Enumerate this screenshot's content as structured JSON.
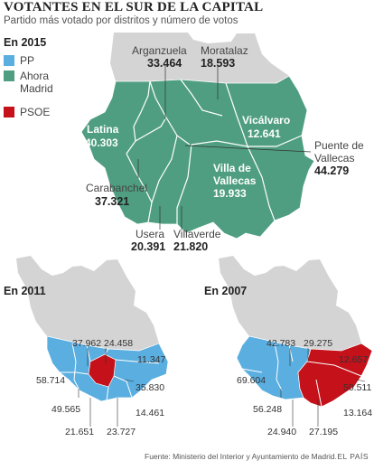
{
  "header": {
    "title": "VOTANTES EN EL SUR DE LA CAPITAL",
    "subtitle": "Partido más votado por distritos y número de votos"
  },
  "colors": {
    "pp": "#5aaee0",
    "ahora_madrid": "#4f9e82",
    "psoe": "#c4111a",
    "other_districts": "#d4d4d4",
    "borders": "#ffffff"
  },
  "legend": [
    {
      "label": "PP",
      "color": "#5aaee0"
    },
    {
      "label": "Ahora Madrid",
      "color": "#4f9e82"
    },
    {
      "label": "PSOE",
      "color": "#c4111a"
    }
  ],
  "map_2015": {
    "heading": "En 2015",
    "districts": [
      {
        "name": "Arganzuela",
        "votes": "33.464"
      },
      {
        "name": "Moratalaz",
        "votes": "18.593"
      },
      {
        "name": "Latina",
        "votes": "40.303"
      },
      {
        "name": "Vicálvaro",
        "votes": "12.641"
      },
      {
        "name": "Puente de Vallecas",
        "votes": "44.279"
      },
      {
        "name": "Villa de Vallecas",
        "votes": "19.933"
      },
      {
        "name": "Carabanchel",
        "votes": "37.321"
      },
      {
        "name": "Usera",
        "votes": "20.391"
      },
      {
        "name": "Villaverde",
        "votes": "21.820"
      }
    ]
  },
  "map_2011": {
    "heading": "En 2011",
    "values": [
      "37.962",
      "24.458",
      "11.347",
      "58.714",
      "35.830",
      "49.565",
      "14.461",
      "21.651",
      "23.727"
    ]
  },
  "map_2007": {
    "heading": "En 2007",
    "values": [
      "42.783",
      "29.275",
      "12.657",
      "69.604",
      "50.511",
      "56.248",
      "13.164",
      "24.940",
      "27.195"
    ]
  },
  "footer": {
    "source": "Fuente: Ministerio del Interior y Ayuntamiento de Madrid.",
    "brand": "EL PAÍS"
  }
}
